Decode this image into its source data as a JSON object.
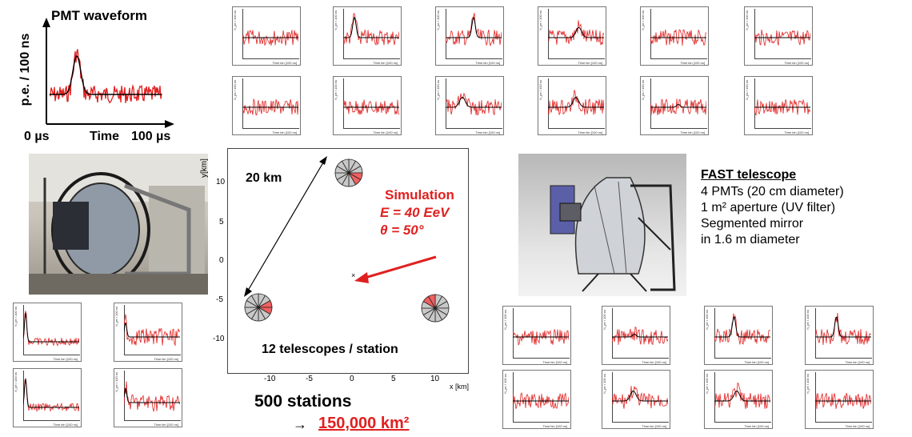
{
  "pmt": {
    "title": "PMT waveform",
    "ylabel": "p.e. / 100 ns",
    "xlabel": "Time",
    "x_start": "0 µs",
    "x_end": "100 µs"
  },
  "traces": {
    "xlabel": "Time bin [100 ns]",
    "ylabel": "N_pe / 100 ns"
  },
  "map": {
    "distance_label": "20 km",
    "sim_title": "Simulation",
    "sim_energy": "E = 40 EeV",
    "sim_theta": "θ = 50°",
    "telescopes_label": "12 telescopes / station",
    "ylabel": "y[km]",
    "xlabel": "x [km]",
    "yticks": [
      "10",
      "5",
      "0",
      "-5",
      "-10"
    ],
    "xticks": [
      "-10",
      "-5",
      "0",
      "5",
      "10"
    ]
  },
  "stations": {
    "count_label": "500 stations",
    "arrow": "→",
    "area_label": "150,000 km²"
  },
  "fast": {
    "title": "FAST telescope",
    "lines": [
      "4 PMTs (20 cm diameter)",
      "1 m² aperture (UV filter)",
      "Segmented mirror",
      "in 1.6 m diameter"
    ]
  },
  "colors": {
    "red": "#e02020",
    "black": "#000000",
    "sector_red": "#f06060",
    "sector_gray": "#c8c8c8"
  }
}
